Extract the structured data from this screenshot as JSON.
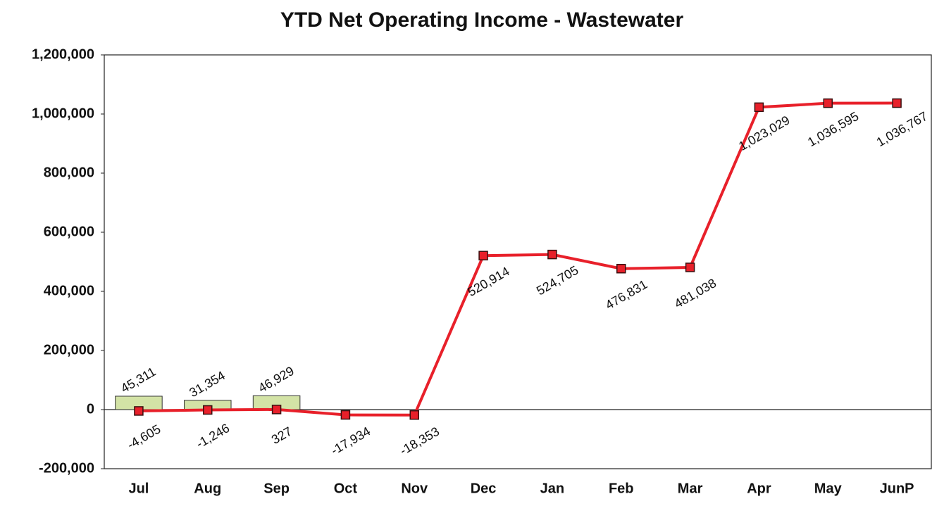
{
  "chart_data": {
    "type": "bar",
    "title": "YTD Net Operating Income - Wastewater",
    "categories": [
      "Jul",
      "Aug",
      "Sep",
      "Oct",
      "Nov",
      "Dec",
      "Jan",
      "Feb",
      "Mar",
      "Apr",
      "May",
      "JunP"
    ],
    "series": [
      {
        "type": "bar",
        "color": "#d3e3a6",
        "values": [
          45311,
          31354,
          46929,
          null,
          null,
          null,
          null,
          null,
          null,
          null,
          null,
          null
        ],
        "value_labels": [
          "45,311",
          "31,354",
          "46,929",
          null,
          null,
          null,
          null,
          null,
          null,
          null,
          null,
          null
        ]
      },
      {
        "type": "line",
        "color": "#e8202a",
        "values": [
          -4605,
          -1246,
          327,
          -17934,
          -18353,
          520914,
          524705,
          476831,
          481038,
          1023029,
          1036595,
          1036767
        ],
        "value_labels": [
          "-4,605",
          "-1,246",
          "327",
          "-17,934",
          "-18,353",
          "520,914",
          "524,705",
          "476,831",
          "481,038",
          "1,023,029",
          "1,036,595",
          "1,036,767"
        ]
      }
    ],
    "ylim": [
      -200000,
      1200000
    ],
    "yticks": [
      {
        "value": -200000,
        "label": "-200,000"
      },
      0,
      {
        "value": 200000,
        "label": "200,000"
      },
      {
        "value": 400000,
        "label": "400,000"
      },
      {
        "value": 600000,
        "label": "600,000"
      },
      {
        "value": 800000,
        "label": "800,000"
      },
      {
        "value": 1000000,
        "label": "1,000,000"
      },
      {
        "value": 1200000,
        "label": "1,200,000"
      }
    ],
    "grid": false
  }
}
